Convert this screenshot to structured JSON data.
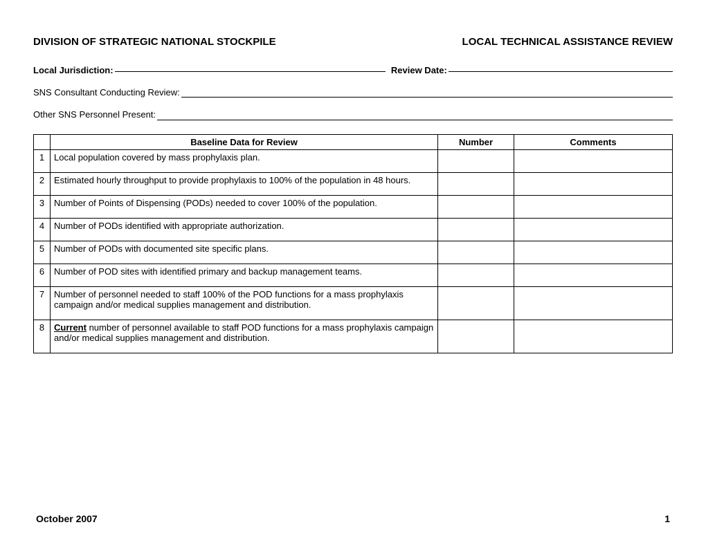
{
  "header": {
    "left": "DIVISION OF STRATEGIC NATIONAL STOCKPILE",
    "right": "LOCAL TECHNICAL ASSISTANCE REVIEW"
  },
  "fields": {
    "jurisdiction_label": "Local Jurisdiction:",
    "review_date_label": "Review Date:",
    "consultant_label": "SNS Consultant Conducting Review:",
    "personnel_label": "Other SNS Personnel Present:"
  },
  "table": {
    "headers": {
      "baseline": "Baseline Data for Review",
      "number": "Number",
      "comments": "Comments"
    },
    "rows": [
      {
        "n": "1",
        "text": "Local population covered by mass prophylaxis plan.",
        "underline": ""
      },
      {
        "n": "2",
        "text": "Estimated hourly throughput to provide prophylaxis to 100% of the population in 48 hours.",
        "underline": ""
      },
      {
        "n": "3",
        "text": "Number of Points of Dispensing (PODs) needed to cover 100% of the population.",
        "underline": ""
      },
      {
        "n": "4",
        "text": "Number of PODs identified with appropriate authorization.",
        "underline": ""
      },
      {
        "n": "5",
        "text": "Number of PODs with documented site specific plans.",
        "underline": ""
      },
      {
        "n": "6",
        "text": "Number of POD sites with identified primary and backup management teams.",
        "underline": ""
      },
      {
        "n": "7",
        "text": "Number of personnel needed to staff 100% of the POD functions for a mass prophylaxis campaign and/or medical supplies management and distribution.",
        "underline": ""
      },
      {
        "n": "8",
        "text": " number of personnel available to staff POD functions for a mass prophylaxis campaign and/or medical supplies management and distribution.",
        "underline": "Current"
      }
    ]
  },
  "footer": {
    "date": "October 2007",
    "page": "1"
  }
}
